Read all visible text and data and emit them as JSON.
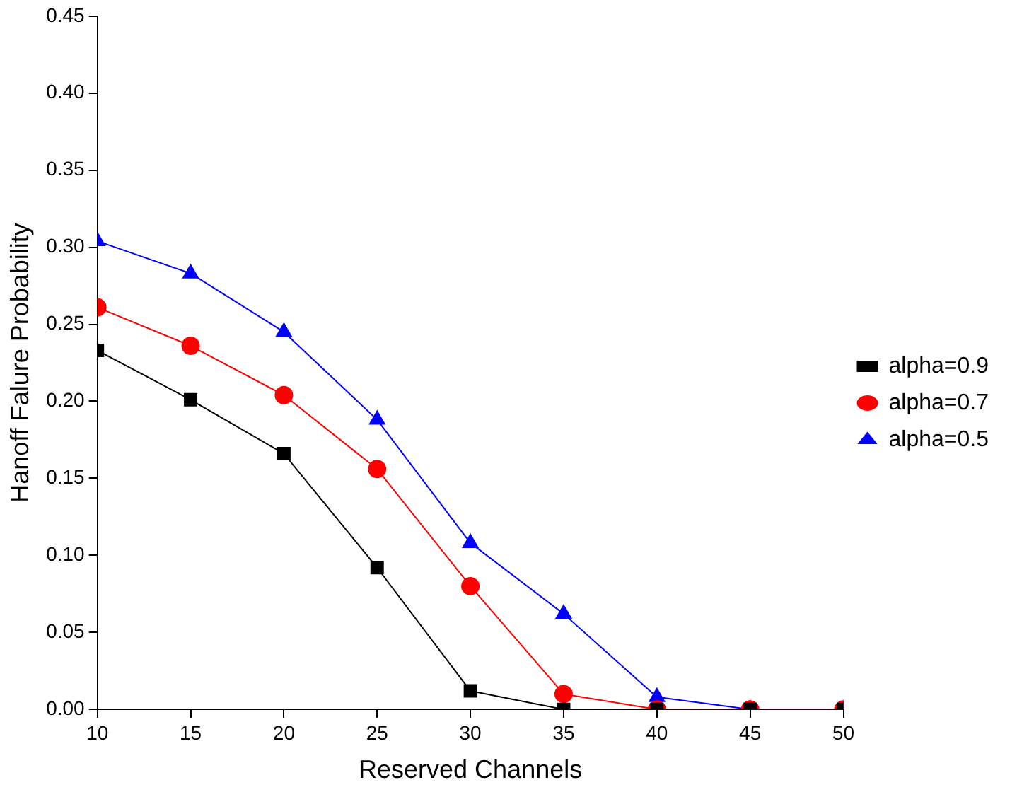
{
  "chart_data": {
    "type": "line",
    "xlabel": "Reserved Channels",
    "ylabel": "Hanoff Falure Probability",
    "x": [
      10,
      15,
      20,
      25,
      30,
      35,
      40,
      45,
      50
    ],
    "series": [
      {
        "name": "alpha=0.9",
        "color": "#000000",
        "marker": "square",
        "values": [
          0.233,
          0.201,
          0.166,
          0.092,
          0.012,
          0,
          0,
          0,
          0
        ]
      },
      {
        "name": "alpha=0.7",
        "color": "#ff0000",
        "marker": "circle",
        "values": [
          0.261,
          0.236,
          0.204,
          0.156,
          0.08,
          0.01,
          0,
          0,
          0
        ]
      },
      {
        "name": "alpha=0.5",
        "color": "#0000ff",
        "marker": "triangle",
        "values": [
          0.304,
          0.283,
          0.245,
          0.188,
          0.108,
          0.062,
          0.008,
          0,
          0
        ]
      }
    ],
    "xlim": [
      10,
      50
    ],
    "xticks": [
      10,
      15,
      20,
      25,
      30,
      35,
      40,
      45,
      50
    ],
    "ylim": [
      0,
      0.45
    ],
    "yticks": [
      {
        "value": 0,
        "label": "0.00"
      },
      {
        "value": 0.05,
        "label": "0.05"
      },
      {
        "value": 0.1,
        "label": "0.10"
      },
      {
        "value": 0.15,
        "label": "0.15"
      },
      {
        "value": 0.2,
        "label": "0.20"
      },
      {
        "value": 0.25,
        "label": "0.25"
      },
      {
        "value": 0.3,
        "label": "0.30"
      },
      {
        "value": 0.35,
        "label": "0.35"
      },
      {
        "value": 0.4,
        "label": "0.40"
      },
      {
        "value": 0.45,
        "label": "0.45"
      }
    ],
    "grid": false,
    "legend": "right",
    "line_style": "solid"
  }
}
